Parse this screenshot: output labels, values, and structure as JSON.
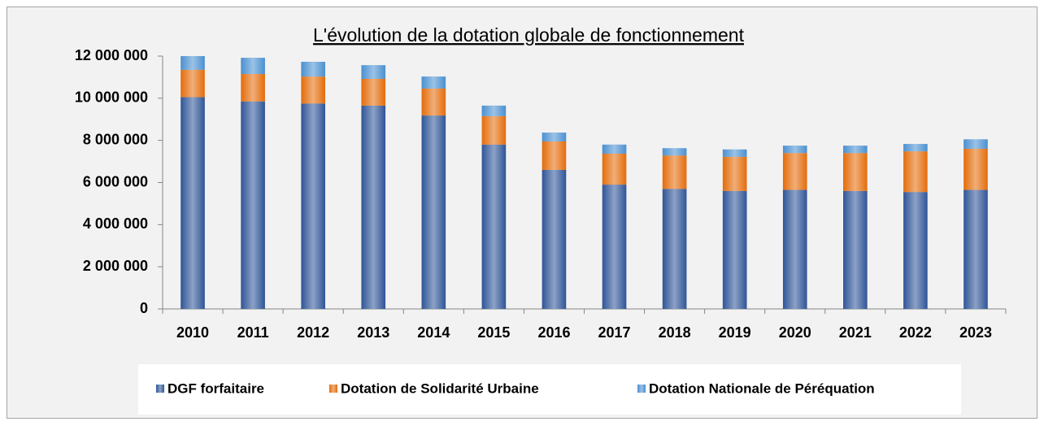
{
  "chart_data": {
    "type": "stacked_bar",
    "title": "L'évolution de la dotation globale de fonctionnement",
    "categories": [
      "2010",
      "2011",
      "2012",
      "2013",
      "2014",
      "2015",
      "2016",
      "2017",
      "2018",
      "2019",
      "2020",
      "2021",
      "2022",
      "2023"
    ],
    "series": [
      {
        "name": "DGF forfaitaire",
        "color": "#2f5597",
        "values": [
          10050000,
          9850000,
          9750000,
          9650000,
          9180000,
          7800000,
          6600000,
          5900000,
          5700000,
          5600000,
          5650000,
          5600000,
          5550000,
          5650000
        ]
      },
      {
        "name": "Dotation de Solidarité Urbaine",
        "color": "#e46c0a",
        "values": [
          1300000,
          1300000,
          1280000,
          1270000,
          1280000,
          1350000,
          1350000,
          1470000,
          1580000,
          1620000,
          1750000,
          1800000,
          1930000,
          1950000
        ]
      },
      {
        "name": "Dotation Nationale de Péréquation",
        "color": "#4a90d0",
        "values": [
          650000,
          770000,
          700000,
          650000,
          570000,
          500000,
          420000,
          430000,
          350000,
          350000,
          350000,
          350000,
          350000,
          450000
        ]
      }
    ],
    "ylim": [
      0,
      12000000
    ],
    "yticks": [
      0,
      {
        "value": 2000000,
        "label": "2 000 000"
      },
      {
        "value": 4000000,
        "label": "4 000 000"
      },
      {
        "value": 6000000,
        "label": "6 000 000"
      },
      {
        "value": 8000000,
        "label": "8 000 000"
      },
      {
        "value": 10000000,
        "label": "10 000 000"
      },
      {
        "value": 12000000,
        "label": "12 000 000"
      }
    ],
    "grid": false,
    "legend": "bottom"
  }
}
